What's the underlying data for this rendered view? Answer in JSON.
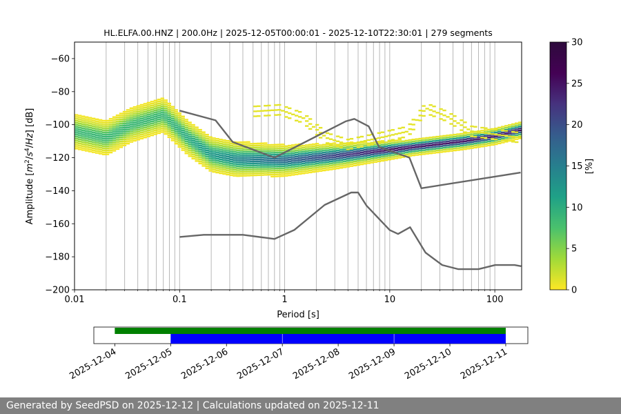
{
  "chart_data": [
    {
      "type": "heatmap",
      "title": "HL.ELFA.00.HNZ | 200.0Hz | 2025-12-05T00:00:01 - 2025-12-10T22:30:01 | 279 segments",
      "xlabel": "Period [s]",
      "ylabel_parts": [
        "Amplitude [",
        "m",
        "2",
        "/",
        "s",
        "4",
        "/",
        "Hz",
        "] [dB]"
      ],
      "xscale": "log",
      "xlim": [
        0.01,
        180
      ],
      "ylim": [
        -200,
        -50
      ],
      "x_ticks": [
        {
          "value": 0.01,
          "label": "0.01"
        },
        {
          "value": 0.1,
          "label": "0.1"
        },
        {
          "value": 1,
          "label": "1"
        },
        {
          "value": 10,
          "label": "10"
        },
        {
          "value": 100,
          "label": "100"
        }
      ],
      "y_ticks": [
        {
          "value": -60,
          "label": "−60"
        },
        {
          "value": -80,
          "label": "−80"
        },
        {
          "value": -100,
          "label": "−100"
        },
        {
          "value": -120,
          "label": "−120"
        },
        {
          "value": -140,
          "label": "−140"
        },
        {
          "value": -160,
          "label": "−160"
        },
        {
          "value": -180,
          "label": "−180"
        },
        {
          "value": -200,
          "label": "−200"
        }
      ],
      "grid": "x-major-and-minor",
      "colormap": "viridis_r",
      "colorbar": {
        "label": "[%]",
        "range": [
          0,
          30
        ],
        "ticks": [
          {
            "value": 0,
            "label": "0"
          },
          {
            "value": 5,
            "label": "5"
          },
          {
            "value": 10,
            "label": "10"
          },
          {
            "value": 15,
            "label": "15"
          },
          {
            "value": 20,
            "label": "20"
          },
          {
            "value": 25,
            "label": "25"
          },
          {
            "value": 30,
            "label": "30"
          }
        ]
      },
      "distribution_bands": [
        {
          "name": "main",
          "center": [
            [
              0.01,
              -104
            ],
            [
              0.02,
              -108
            ],
            [
              0.035,
              -100
            ],
            [
              0.07,
              -94
            ],
            [
              0.12,
              -108
            ],
            [
              0.2,
              -118
            ],
            [
              0.35,
              -121
            ],
            [
              1,
              -121.5
            ],
            [
              3,
              -119
            ],
            [
              8,
              -116
            ],
            [
              20,
              -113
            ],
            [
              50,
              -110
            ],
            [
              100,
              -107
            ],
            [
              180,
              -103
            ]
          ],
          "half_width": 9,
          "peak_percent": 25
        },
        {
          "name": "secondary",
          "center": [
            [
              0.5,
              -92
            ],
            [
              0.9,
              -91
            ],
            [
              1.5,
              -96
            ],
            [
              2.5,
              -108
            ],
            [
              4,
              -112
            ],
            [
              8,
              -108
            ],
            [
              15,
              -104
            ],
            [
              22,
              -90
            ],
            [
              35,
              -95
            ],
            [
              60,
              -104
            ],
            [
              180,
              -108
            ]
          ],
          "half_width": 3,
          "peak_percent": 1
        }
      ],
      "noise_models": [
        {
          "name": "upper",
          "points": [
            [
              0.1,
              -91.5
            ],
            [
              0.22,
              -97.4
            ],
            [
              0.32,
              -110.5
            ],
            [
              0.8,
              -120
            ],
            [
              3.8,
              -98
            ],
            [
              4.6,
              -96.5
            ],
            [
              6.3,
              -101
            ],
            [
              7.9,
              -113.5
            ],
            [
              15.4,
              -120
            ],
            [
              20,
              -138.5
            ],
            [
              176,
              -129
            ]
          ]
        },
        {
          "name": "lower",
          "points": [
            [
              0.1,
              -168
            ],
            [
              0.17,
              -166.7
            ],
            [
              0.4,
              -166.7
            ],
            [
              0.8,
              -169.2
            ],
            [
              1.24,
              -163.7
            ],
            [
              2.4,
              -148.6
            ],
            [
              4.3,
              -141.1
            ],
            [
              5,
              -141.1
            ],
            [
              6,
              -149
            ],
            [
              10,
              -163.8
            ],
            [
              12,
              -166.2
            ],
            [
              15.6,
              -162.1
            ],
            [
              21.9,
              -177.5
            ],
            [
              31.6,
              -185
            ],
            [
              45,
              -187.5
            ],
            [
              70,
              -187.5
            ],
            [
              101,
              -185
            ],
            [
              154,
              -185
            ],
            [
              178,
              -185.7
            ]
          ]
        }
      ]
    },
    {
      "type": "timeline",
      "x_ticks": [
        {
          "value": "2025-12-04",
          "label": "2025-12-04"
        },
        {
          "value": "2025-12-05",
          "label": "2025-12-05"
        },
        {
          "value": "2025-12-06",
          "label": "2025-12-06"
        },
        {
          "value": "2025-12-07",
          "label": "2025-12-07"
        },
        {
          "value": "2025-12-08",
          "label": "2025-12-08"
        },
        {
          "value": "2025-12-09",
          "label": "2025-12-09"
        },
        {
          "value": "2025-12-10",
          "label": "2025-12-10"
        },
        {
          "value": "2025-12-11",
          "label": "2025-12-11"
        }
      ],
      "xlim": [
        "2025-12-03T15:00:00",
        "2025-12-11T09:30:00"
      ],
      "green_bars": [
        {
          "start": "2025-12-04T00:00:00",
          "end": "2025-12-11T00:00:00"
        }
      ],
      "blue_bars": [
        {
          "start": "2025-12-05T00:00:00",
          "end": "2025-12-06T23:55:00"
        },
        {
          "start": "2025-12-07T00:05:00",
          "end": "2025-12-08T23:55:00"
        },
        {
          "start": "2025-12-09T00:05:00",
          "end": "2025-12-11T00:00:00"
        }
      ]
    }
  ],
  "footer": {
    "text": "Generated by SeedPSD on 2025-12-12 | Calculations updated on 2025-12-11"
  },
  "colors": {
    "noise_model": "#666666",
    "grid": "#b0b0b0",
    "green_bar": "#008000",
    "blue_bar": "#0000ff",
    "footer_bg": "#808080"
  }
}
